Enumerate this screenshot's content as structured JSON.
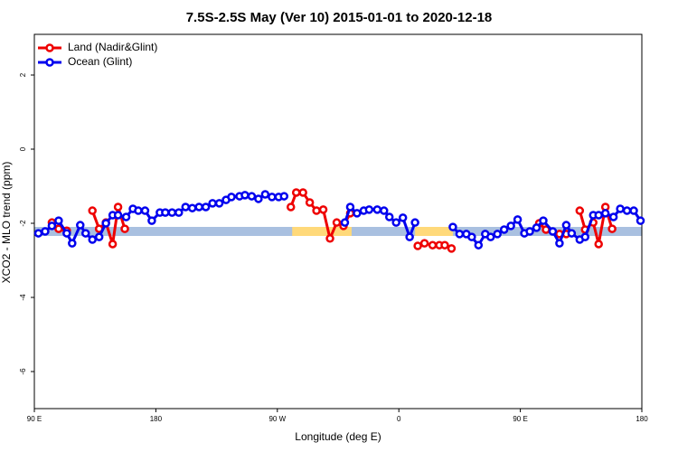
{
  "chart_data": {
    "type": "line",
    "title": "7.5S-2.5S May (Ver 10)   2015-01-01 to 2020-12-18",
    "x_label": "Longitude (deg E)",
    "y_label": "XCO2 - MLO trend (ppm)",
    "xlim": [
      90,
      540
    ],
    "ylim": [
      -7,
      3
    ],
    "xticks": [
      {
        "value": 90,
        "label": "90 E"
      },
      {
        "value": 180,
        "label": "180"
      },
      {
        "value": 270,
        "label": "90 W"
      },
      {
        "value": 360,
        "label": "0"
      },
      {
        "value": 450,
        "label": "90 E"
      },
      {
        "value": 540,
        "label": "180"
      }
    ],
    "yticks": [
      2,
      0,
      -2,
      -4,
      -6
    ],
    "legend": "top-left",
    "band": {
      "value": -2.22,
      "color": "#a9c0e0",
      "highlights": [
        [
          281,
          325
        ],
        [
          372,
          400
        ]
      ],
      "highlight_color": "#ffd97a"
    },
    "series": [
      {
        "name": "Land (Nadir&Glint)",
        "color": "#ee0000",
        "x": [
          103,
          108,
          114,
          null,
          133,
          138,
          143,
          148,
          152,
          157,
          null,
          280,
          284,
          289,
          294,
          299,
          304,
          309,
          314,
          319,
          324,
          null,
          374,
          379,
          385,
          390,
          394,
          399,
          null,
          464,
          469,
          479,
          484,
          null,
          494,
          498,
          504,
          508,
          513,
          518
        ],
        "values": [
          -1.98,
          -2.15,
          -2.2,
          null,
          -1.66,
          -2.15,
          -1.98,
          -2.56,
          -1.56,
          -2.15,
          null,
          -1.56,
          -1.17,
          -1.17,
          -1.44,
          -1.66,
          -1.63,
          -2.41,
          -1.98,
          -2.07,
          -1.73,
          null,
          -2.61,
          -2.54,
          -2.59,
          -2.59,
          -2.59,
          -2.68,
          null,
          -2.0,
          -2.17,
          -2.29,
          -2.29,
          null,
          -1.66,
          -2.17,
          -1.98,
          -2.56,
          -1.56,
          -2.15
        ]
      },
      {
        "name": "Ocean (Glint)",
        "color": "#0000ee",
        "x": [
          93,
          98,
          103,
          108,
          114,
          118,
          124,
          128,
          133,
          138,
          143,
          148,
          152,
          158,
          163,
          167,
          172,
          177,
          183,
          187,
          192,
          197,
          202,
          207,
          212,
          217,
          222,
          227,
          232,
          236,
          242,
          246,
          251,
          256,
          261,
          266,
          271,
          275,
          null,
          320,
          324,
          329,
          334,
          338,
          344,
          349,
          353,
          358,
          363,
          368,
          372,
          null,
          400,
          405,
          410,
          414,
          419,
          424,
          428,
          433,
          438,
          443,
          448,
          453,
          457,
          462,
          467,
          474,
          479,
          484,
          488,
          494,
          498,
          504,
          508,
          513,
          519,
          524,
          529,
          534,
          539
        ],
        "values": [
          -2.27,
          -2.22,
          -2.07,
          -1.93,
          -2.27,
          -2.54,
          -2.05,
          -2.27,
          -2.44,
          -2.37,
          -2.0,
          -1.78,
          -1.78,
          -1.83,
          -1.61,
          -1.66,
          -1.66,
          -1.93,
          -1.71,
          -1.71,
          -1.71,
          -1.71,
          -1.56,
          -1.59,
          -1.56,
          -1.56,
          -1.46,
          -1.46,
          -1.37,
          -1.29,
          -1.27,
          -1.24,
          -1.27,
          -1.34,
          -1.22,
          -1.29,
          -1.29,
          -1.27,
          null,
          -1.98,
          -1.56,
          -1.73,
          -1.66,
          -1.63,
          -1.63,
          -1.66,
          -1.83,
          -1.98,
          -1.85,
          -2.37,
          -1.98,
          null,
          -2.1,
          -2.29,
          -2.29,
          -2.37,
          -2.59,
          -2.29,
          -2.37,
          -2.29,
          -2.17,
          -2.07,
          -1.9,
          -2.27,
          -2.22,
          -2.12,
          -1.93,
          -2.22,
          -2.54,
          -2.05,
          -2.27,
          -2.44,
          -2.37,
          -1.78,
          -1.78,
          -1.73,
          -1.83,
          -1.61,
          -1.66,
          -1.66,
          -1.93
        ]
      }
    ]
  }
}
